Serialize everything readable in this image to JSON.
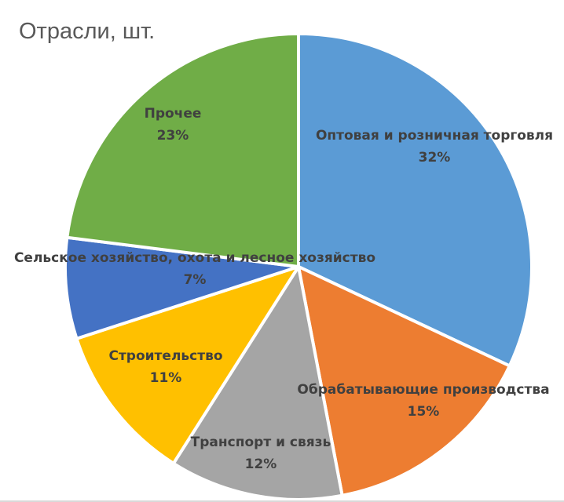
{
  "chart_data": {
    "type": "pie",
    "title": "Отрасли, шт.",
    "categories": [
      "Оптовая и розничная торговля",
      "Обрабатывающие производства",
      "Транспорт и связь",
      "Строительство",
      "Сельское хозяйство, охота и лесное хозяйство",
      "Прочее"
    ],
    "values": [
      32,
      15,
      12,
      11,
      7,
      23
    ],
    "percent_labels": [
      "32%",
      "15%",
      "12%",
      "11%",
      "7%",
      "23%"
    ],
    "colors": [
      "#5B9BD5",
      "#ED7D31",
      "#A5A5A5",
      "#FFC000",
      "#4472C4",
      "#70AD47"
    ],
    "legend": "none",
    "data_labels": "category name and percentage"
  }
}
